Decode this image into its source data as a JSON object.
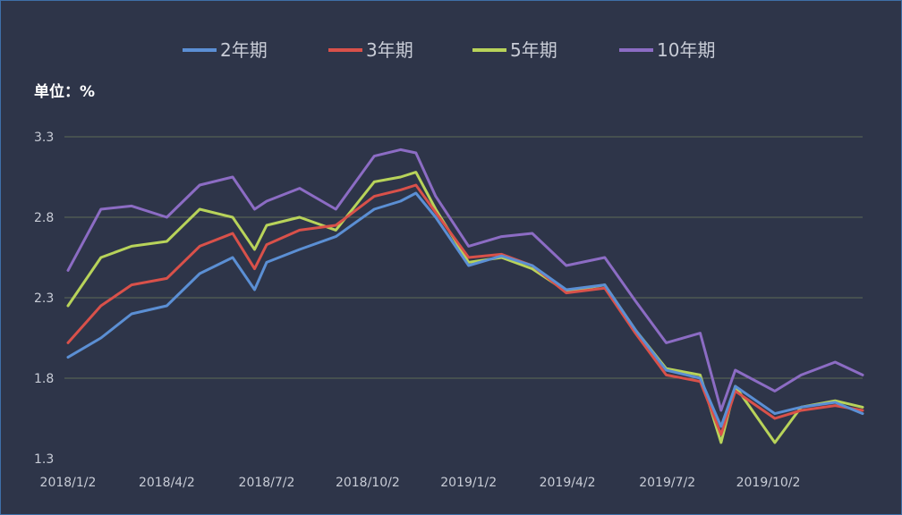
{
  "chart_data": {
    "type": "line",
    "title": "",
    "unit_label": "单位：%",
    "xlabel": "",
    "ylabel": "",
    "ylim": [
      1.3,
      3.3
    ],
    "yticks": [
      "3.3",
      "2.8",
      "2.3",
      "1.8",
      "1.3"
    ],
    "xticks": [
      "2018/1/2",
      "2018/4/2",
      "2018/7/2",
      "2018/10/2",
      "2019/1/2",
      "2019/4/2",
      "2019/7/2",
      "2019/10/2"
    ],
    "grid": true,
    "legend_position": "top",
    "x": [
      "2018-01-02",
      "2018-02-01",
      "2018-03-01",
      "2018-04-02",
      "2018-05-02",
      "2018-06-01",
      "2018-06-21",
      "2018-07-02",
      "2018-08-01",
      "2018-09-03",
      "2018-10-08",
      "2018-11-01",
      "2018-11-15",
      "2018-12-03",
      "2019-01-02",
      "2019-02-01",
      "2019-03-01",
      "2019-04-01",
      "2019-05-06",
      "2019-06-03",
      "2019-07-01",
      "2019-08-01",
      "2019-08-20",
      "2019-09-02",
      "2019-10-08",
      "2019-11-01",
      "2019-12-02",
      "2019-12-27"
    ],
    "series": [
      {
        "name": "2年期",
        "color": "#5b8fd4",
        "values": [
          1.93,
          2.05,
          2.2,
          2.25,
          2.45,
          2.55,
          2.35,
          2.52,
          2.6,
          2.68,
          2.85,
          2.9,
          2.95,
          2.8,
          2.5,
          2.56,
          2.5,
          2.35,
          2.38,
          2.1,
          1.85,
          1.8,
          1.5,
          1.75,
          1.58,
          1.62,
          1.65,
          1.58
        ]
      },
      {
        "name": "3年期",
        "color": "#d9514a",
        "values": [
          2.02,
          2.25,
          2.38,
          2.42,
          2.62,
          2.7,
          2.48,
          2.63,
          2.72,
          2.75,
          2.93,
          2.97,
          3.0,
          2.83,
          2.55,
          2.57,
          2.5,
          2.33,
          2.36,
          2.08,
          1.82,
          1.78,
          1.45,
          1.72,
          1.55,
          1.6,
          1.63,
          1.6
        ]
      },
      {
        "name": "5年期",
        "color": "#b8d35a",
        "values": [
          2.25,
          2.55,
          2.62,
          2.65,
          2.85,
          2.8,
          2.6,
          2.75,
          2.8,
          2.72,
          3.02,
          3.05,
          3.08,
          2.85,
          2.52,
          2.55,
          2.48,
          2.34,
          2.38,
          2.1,
          1.86,
          1.82,
          1.4,
          1.75,
          1.4,
          1.62,
          1.66,
          1.62
        ]
      },
      {
        "name": "10年期",
        "color": "#8c6cc4",
        "values": [
          2.47,
          2.85,
          2.87,
          2.8,
          3.0,
          3.05,
          2.85,
          2.9,
          2.98,
          2.85,
          3.18,
          3.22,
          3.2,
          2.93,
          2.62,
          2.68,
          2.7,
          2.5,
          2.55,
          2.28,
          2.02,
          2.08,
          1.6,
          1.85,
          1.72,
          1.82,
          1.9,
          1.82
        ]
      }
    ]
  }
}
